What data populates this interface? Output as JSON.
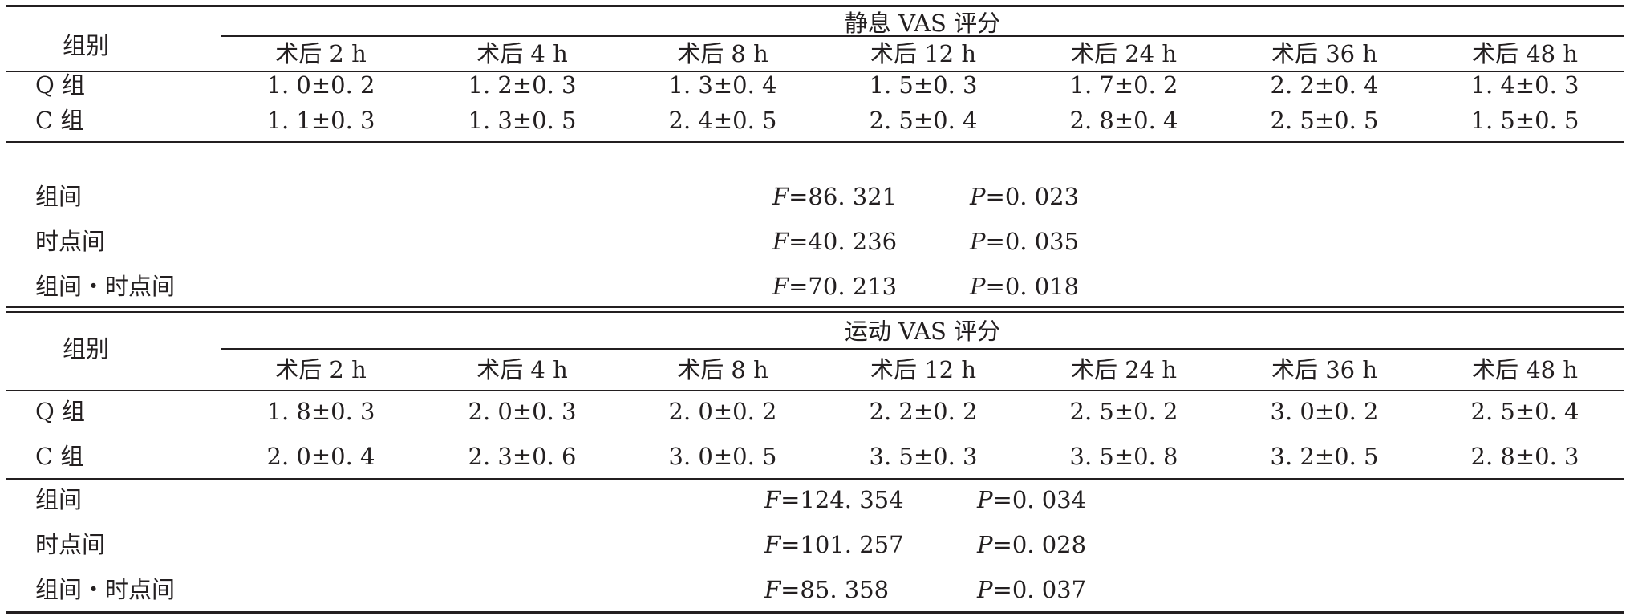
{
  "sections": [
    {
      "group_label": "组别",
      "title": "静息 VAS 评分",
      "columns": [
        "术后 2 h",
        "术后 4 h",
        "术后 8 h",
        "术后 12 h",
        "术后 24 h",
        "术后 36 h",
        "术后 48 h"
      ],
      "rows": [
        {
          "label": "Q 组",
          "cells": [
            "1. 0±0. 2",
            "1. 2±0. 3",
            "1. 3±0. 4",
            "1. 5±0. 3",
            "1. 7±0. 2",
            "2. 2±0. 4",
            "1. 4±0. 3"
          ]
        },
        {
          "label": "C 组",
          "cells": [
            "1. 1±0. 3",
            "1. 3±0. 5",
            "2. 4±0. 5",
            "2. 5±0. 4",
            "2. 8±0. 4",
            "2. 5±0. 5",
            "1. 5±0. 5"
          ]
        }
      ],
      "stats": [
        {
          "label": "组间",
          "f_symbol": "F",
          "f_value": "=86. 321",
          "p_symbol": "P",
          "p_value": "=0. 023"
        },
        {
          "label": "时点间",
          "f_symbol": "F",
          "f_value": "=40. 236",
          "p_symbol": "P",
          "p_value": "=0. 035"
        },
        {
          "label": "组间・时点间",
          "f_symbol": "F",
          "f_value": "=70. 213",
          "p_symbol": "P",
          "p_value": "=0. 018"
        }
      ]
    },
    {
      "group_label": "组别",
      "title": "运动 VAS 评分",
      "columns": [
        "术后 2 h",
        "术后 4 h",
        "术后 8 h",
        "术后 12 h",
        "术后 24 h",
        "术后 36 h",
        "术后 48 h"
      ],
      "rows": [
        {
          "label": "Q 组",
          "cells": [
            "1. 8±0. 3",
            "2. 0±0. 3",
            "2. 0±0. 2",
            "2. 2±0. 2",
            "2. 5±0. 2",
            "3. 0±0. 2",
            "2. 5±0. 4"
          ]
        },
        {
          "label": "C 组",
          "cells": [
            "2. 0±0. 4",
            "2. 3±0. 6",
            "3. 0±0. 5",
            "3. 5±0. 3",
            "3. 5±0. 8",
            "3. 2±0. 5",
            "2. 8±0. 3"
          ]
        }
      ],
      "stats": [
        {
          "label": "组间",
          "f_symbol": "F",
          "f_value": "=124. 354",
          "p_symbol": "P",
          "p_value": "=0. 034"
        },
        {
          "label": "时点间",
          "f_symbol": "F",
          "f_value": "=101. 257",
          "p_symbol": "P",
          "p_value": "=0. 028"
        },
        {
          "label": "组间・时点间",
          "f_symbol": "F",
          "f_value": "=85. 358",
          "p_symbol": "P",
          "p_value": "=0. 037"
        }
      ]
    }
  ]
}
